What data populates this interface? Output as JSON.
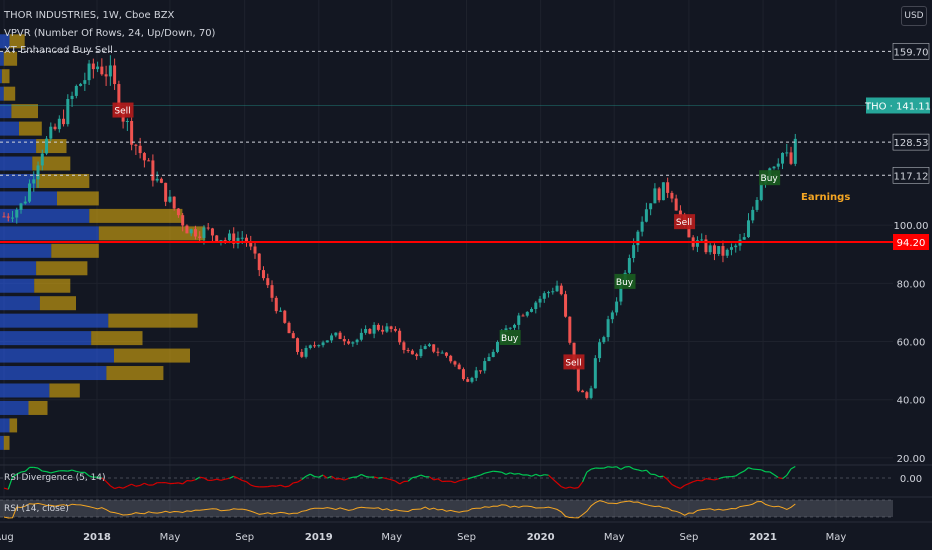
{
  "header": {
    "symbol_line": "THOR INDUSTRIES, 1W, Cboe BZX",
    "indicator_vpvr": "VPVR (Number Of Rows, 24, Up/Down, 70)",
    "indicator_xt": "XT Enhanced Buy Sell",
    "currency": "USD"
  },
  "panes": {
    "rsi_divergence_label": "RSI Divergence (5, 14)",
    "rsi_label": "RSI (14, close)"
  },
  "colors": {
    "background": "#131722",
    "grid": "#1e222d",
    "up": "#26a69a",
    "down": "#ef5350",
    "vp_up": "#2962ff",
    "vp_down": "#f0b90b",
    "support_line": "#ff0000",
    "price_label": "#26a69a",
    "rsi_line": "#f5a623",
    "rsidiv_up": "#00c853",
    "rsidiv_down": "#d50000",
    "earnings": "#f5a623",
    "text": "#d1d4dc"
  },
  "chart_data": {
    "type": "candlestick",
    "title": "THOR INDUSTRIES, 1W, Cboe BZX",
    "ticker": "THO",
    "last_price": "141.11",
    "ylim": [
      20,
      170
    ],
    "y_ticks": [
      "100.00",
      "80.00",
      "60.00",
      "40.00",
      "20.00"
    ],
    "x_ticks": [
      "Aug",
      "2018",
      "May",
      "Sep",
      "2019",
      "May",
      "Sep",
      "2020",
      "May",
      "Sep",
      "2021",
      "May"
    ],
    "x_tick_dates": [
      "2017-08-01",
      "2018-01-01",
      "2018-05-01",
      "2018-09-01",
      "2019-01-01",
      "2019-05-01",
      "2019-09-01",
      "2020-01-01",
      "2020-05-01",
      "2020-09-01",
      "2021-01-01",
      "2021-05-01"
    ],
    "price_levels": [
      {
        "value": 159.7,
        "label": "159.70",
        "style": "dashed"
      },
      {
        "value": 128.53,
        "label": "128.53",
        "style": "dashed"
      },
      {
        "value": 117.12,
        "label": "117.12",
        "style": "dashed"
      },
      {
        "value": 94.2,
        "label": "94.20",
        "style": "solid-red"
      }
    ],
    "last_price_label": "THO · 141.11",
    "close_path": [
      [
        "2017-08-01",
        103
      ],
      [
        "2017-09-01",
        107
      ],
      [
        "2017-10-01",
        126
      ],
      [
        "2017-11-01",
        135
      ],
      [
        "2017-12-01",
        148
      ],
      [
        "2018-01-01",
        155
      ],
      [
        "2018-01-22",
        152
      ],
      [
        "2018-02-12",
        138
      ],
      [
        "2018-03-05",
        128
      ],
      [
        "2018-04-01",
        118
      ],
      [
        "2018-05-01",
        108
      ],
      [
        "2018-06-01",
        98
      ],
      [
        "2018-07-01",
        98
      ],
      [
        "2018-08-01",
        95
      ],
      [
        "2018-09-01",
        96
      ],
      [
        "2018-10-01",
        82
      ],
      [
        "2018-11-01",
        68
      ],
      [
        "2018-12-01",
        55
      ],
      [
        "2019-01-01",
        60
      ],
      [
        "2019-02-01",
        62
      ],
      [
        "2019-03-01",
        60
      ],
      [
        "2019-04-01",
        65
      ],
      [
        "2019-05-01",
        64
      ],
      [
        "2019-06-01",
        55
      ],
      [
        "2019-07-01",
        58
      ],
      [
        "2019-08-01",
        55
      ],
      [
        "2019-09-01",
        47
      ],
      [
        "2019-10-01",
        52
      ],
      [
        "2019-11-01",
        63
      ],
      [
        "2019-12-01",
        70
      ],
      [
        "2020-01-01",
        75
      ],
      [
        "2020-02-01",
        80
      ],
      [
        "2020-03-01",
        44
      ],
      [
        "2020-03-20",
        40
      ],
      [
        "2020-04-01",
        55
      ],
      [
        "2020-05-01",
        72
      ],
      [
        "2020-06-01",
        95
      ],
      [
        "2020-07-01",
        110
      ],
      [
        "2020-08-01",
        113
      ],
      [
        "2020-09-01",
        95
      ],
      [
        "2020-10-01",
        92
      ],
      [
        "2020-11-01",
        90
      ],
      [
        "2020-12-01",
        95
      ],
      [
        "2021-01-01",
        118
      ],
      [
        "2021-02-01",
        125
      ],
      [
        "2021-02-20",
        120
      ],
      [
        "2021-03-01",
        141.11
      ]
    ],
    "signals": [
      {
        "date": "2018-02-12",
        "label": "Sell"
      },
      {
        "date": "2020-02-24",
        "label": "Sell"
      },
      {
        "date": "2019-11-11",
        "label": "Buy"
      },
      {
        "date": "2020-05-18",
        "label": "Buy"
      },
      {
        "date": "2020-08-24",
        "label": "Sell"
      },
      {
        "date": "2021-01-11",
        "label": "Buy"
      }
    ],
    "event": {
      "label": "Earnings"
    },
    "volume_profile": {
      "rows": [
        {
          "price": 163,
          "up": 5,
          "down": 8
        },
        {
          "price": 157,
          "up": 2,
          "down": 7
        },
        {
          "price": 151,
          "up": 1,
          "down": 4
        },
        {
          "price": 145,
          "up": 2,
          "down": 6
        },
        {
          "price": 139,
          "up": 6,
          "down": 14
        },
        {
          "price": 133,
          "up": 10,
          "down": 12
        },
        {
          "price": 127,
          "up": 19,
          "down": 16
        },
        {
          "price": 121,
          "up": 17,
          "down": 20
        },
        {
          "price": 115,
          "up": 19,
          "down": 28
        },
        {
          "price": 109,
          "up": 30,
          "down": 22
        },
        {
          "price": 103,
          "up": 47,
          "down": 49
        },
        {
          "price": 97,
          "up": 52,
          "down": 56
        },
        {
          "price": 91,
          "up": 27,
          "down": 25
        },
        {
          "price": 85,
          "up": 19,
          "down": 27
        },
        {
          "price": 79,
          "up": 18,
          "down": 19
        },
        {
          "price": 73,
          "up": 21,
          "down": 19
        },
        {
          "price": 67,
          "up": 57,
          "down": 47
        },
        {
          "price": 61,
          "up": 48,
          "down": 27
        },
        {
          "price": 55,
          "up": 60,
          "down": 40
        },
        {
          "price": 49,
          "up": 56,
          "down": 30
        },
        {
          "price": 43,
          "up": 26,
          "down": 16
        },
        {
          "price": 37,
          "up": 15,
          "down": 10
        },
        {
          "price": 31,
          "up": 5,
          "down": 4
        },
        {
          "price": 25,
          "up": 2,
          "down": 3
        }
      ]
    },
    "rsi_divergence": {
      "zero_label": "0.00"
    }
  }
}
